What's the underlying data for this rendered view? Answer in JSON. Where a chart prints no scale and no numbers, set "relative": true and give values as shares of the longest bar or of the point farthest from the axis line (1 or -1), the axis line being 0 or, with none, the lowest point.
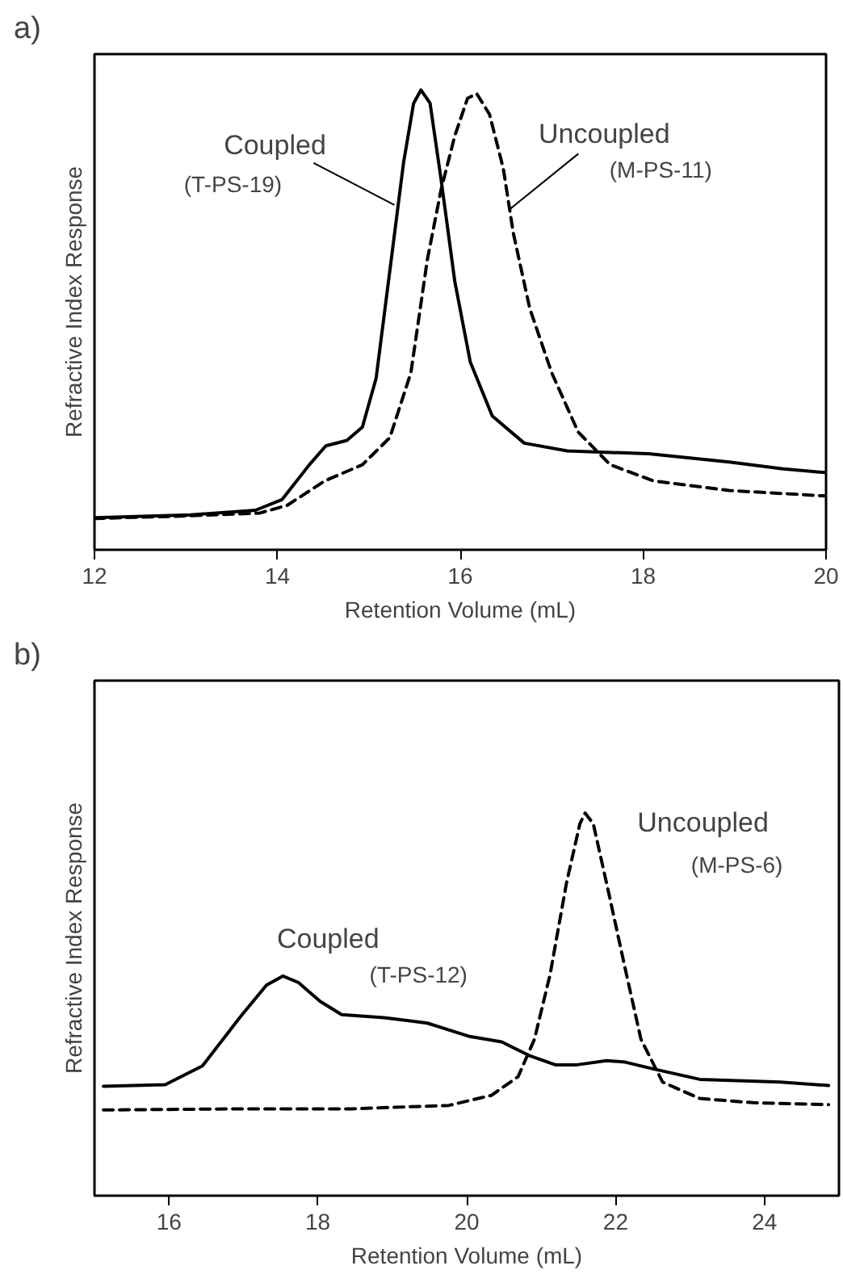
{
  "chart_data": [
    {
      "type": "line",
      "title": "a)",
      "xlabel": "Retention Volume (mL)",
      "ylabel": "Refractive Index Response",
      "relative": true,
      "xlim": [
        12,
        20
      ],
      "xticks": [
        12,
        14,
        16,
        18,
        20
      ],
      "grid": false,
      "tick_labels": "x",
      "series": [
        {
          "color": "#000000",
          "line_style": "solid",
          "x": [
            12,
            13.05,
            13.76,
            14.05,
            14.35,
            14.53,
            14.76,
            14.93,
            15.08,
            15.23,
            15.38,
            15.49,
            15.57,
            15.67,
            15.79,
            15.94,
            16.11,
            16.35,
            16.7,
            17.17,
            18.06,
            18.94,
            19.53,
            20
          ],
          "values": [
            0.07,
            0.076,
            0.086,
            0.109,
            0.185,
            0.226,
            0.238,
            0.267,
            0.373,
            0.607,
            0.842,
            0.971,
            1,
            0.971,
            0.806,
            0.584,
            0.408,
            0.291,
            0.232,
            0.215,
            0.209,
            0.191,
            0.176,
            0.168
          ]
        },
        {
          "color": "#000000",
          "line_style": "dashed",
          "x": [
            12,
            13.05,
            13.81,
            14.11,
            14.52,
            14.93,
            15.23,
            15.46,
            15.64,
            15.79,
            15.94,
            16.08,
            16.18,
            16.32,
            16.47,
            16.58,
            16.76,
            17.0,
            17.29,
            17.64,
            18.11,
            18.94,
            20
          ],
          "values": [
            0.068,
            0.074,
            0.08,
            0.097,
            0.15,
            0.185,
            0.244,
            0.385,
            0.631,
            0.783,
            0.9,
            0.982,
            0.992,
            0.947,
            0.83,
            0.689,
            0.525,
            0.385,
            0.256,
            0.185,
            0.15,
            0.129,
            0.117
          ]
        }
      ],
      "annotations": [
        {
          "text": "Coupled",
          "x": 15.28,
          "y": 0.75
        },
        "(T-PS-19)",
        {
          "text": "Uncoupled",
          "x": 16.55,
          "y": 0.742
        },
        "(M-PS-11)"
      ]
    },
    {
      "type": "line",
      "title": "b)",
      "xlabel": "Retention Volume (mL)",
      "ylabel": "Refractive Index Response",
      "relative": true,
      "xlim": [
        15,
        25
      ],
      "xticks": [
        16,
        18,
        20,
        22,
        24
      ],
      "grid": false,
      "tick_labels": "x",
      "series": [
        {
          "color": "#000000",
          "line_style": "solid",
          "x": [
            15.12,
            15.95,
            16.45,
            16.95,
            17.31,
            17.53,
            17.74,
            18.03,
            18.32,
            18.89,
            19.47,
            20.04,
            20.47,
            20.83,
            21.19,
            21.48,
            21.88,
            22.13,
            22.49,
            23.13,
            24.21,
            24.86
          ],
          "values": [
            0.286,
            0.29,
            0.339,
            0.465,
            0.55,
            0.574,
            0.557,
            0.508,
            0.473,
            0.465,
            0.451,
            0.416,
            0.402,
            0.367,
            0.342,
            0.342,
            0.353,
            0.349,
            0.332,
            0.304,
            0.297,
            0.288
          ]
        },
        {
          "color": "#000000",
          "line_style": "dashed",
          "x": [
            15.12,
            17.03,
            18.46,
            19.76,
            20.33,
            20.69,
            20.91,
            21.12,
            21.34,
            21.52,
            21.59,
            21.7,
            21.91,
            22.13,
            22.34,
            22.63,
            23.13,
            23.85,
            24.86
          ],
          "values": [
            0.224,
            0.227,
            0.227,
            0.236,
            0.262,
            0.311,
            0.409,
            0.578,
            0.817,
            0.972,
            1,
            0.972,
            0.789,
            0.592,
            0.409,
            0.297,
            0.254,
            0.243,
            0.238
          ]
        }
      ],
      "annotations": [
        {
          "text": "Coupled",
          "x": 17.53,
          "y": 0.574
        },
        "(T-PS-12)",
        {
          "text": "Uncoupled",
          "x": 21.59,
          "y": 1
        },
        "(M-PS-6)"
      ]
    }
  ]
}
